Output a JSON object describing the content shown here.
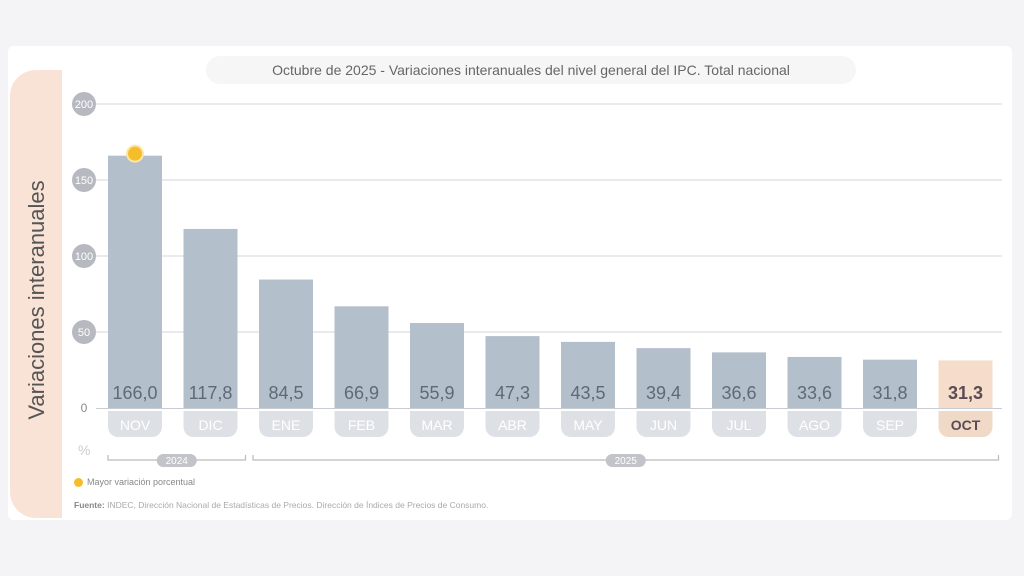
{
  "chart_data": {
    "type": "bar",
    "title": "Octubre de 2025 - Variaciones interanuales del nivel general del IPC. Total nacional",
    "ylabel": "Variaciones interanuales",
    "yunit": "%",
    "ylim": [
      0,
      200
    ],
    "yticks": [
      0,
      50,
      100,
      150,
      200
    ],
    "categories": [
      "NOV",
      "DIC",
      "ENE",
      "FEB",
      "MAR",
      "ABR",
      "MAY",
      "JUN",
      "JUL",
      "AGO",
      "SEP",
      "OCT"
    ],
    "values": [
      166.0,
      117.8,
      84.5,
      66.9,
      55.9,
      47.3,
      43.5,
      39.4,
      36.6,
      33.6,
      31.8,
      31.3
    ],
    "value_labels": [
      "166,0",
      "117,8",
      "84,5",
      "66,9",
      "55,9",
      "47,3",
      "43,5",
      "39,4",
      "36,6",
      "33,6",
      "31,8",
      "31,3"
    ],
    "year_groups": [
      {
        "label": "2024",
        "from": 0,
        "to": 1
      },
      {
        "label": "2025",
        "from": 2,
        "to": 11
      }
    ],
    "highlight_max_index": 0,
    "current_index": 11,
    "legend": "Mayor variación porcentual",
    "source_label": "Fuente:",
    "source": "INDEC, Dirección Nacional de Estadísticas de Precios. Dirección de Índices de Precios de Consumo.",
    "colors": {
      "bar": "#b3bfca",
      "current": "#f6dccb",
      "marker": "#f6bd2a",
      "month_pill": "#dde1e6",
      "current_pill": "#f1d9c8"
    }
  }
}
